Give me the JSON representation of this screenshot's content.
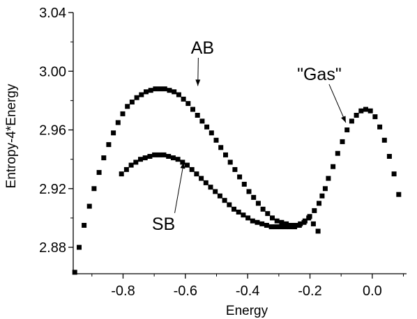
{
  "chart_data": {
    "type": "scatter",
    "xlabel": "Energy",
    "ylabel": "Entropy-4*Energy",
    "xlim": [
      -0.96,
      0.11
    ],
    "ylim": [
      2.862,
      3.04
    ],
    "x_ticks": [
      "-0.8",
      "-0.6",
      "-0.4",
      "-0.2",
      "0.0"
    ],
    "y_ticks": [
      "2.88",
      "2.92",
      "2.96",
      "3.00",
      "3.04"
    ],
    "grid": false,
    "marker": "square",
    "marker_color": "#000000",
    "annotations": [
      {
        "text": "AB",
        "x": -0.545,
        "y": 3.012,
        "points_to": [
          -0.56,
          2.99
        ]
      },
      {
        "text": "\"Gas\"",
        "x": -0.17,
        "y": 2.994,
        "points_to": [
          -0.085,
          2.965
        ]
      },
      {
        "text": "SB",
        "x": -0.67,
        "y": 2.892,
        "points_to": [
          -0.605,
          2.938
        ]
      }
    ],
    "series": [
      {
        "x": [
          -0.955,
          -0.941,
          -0.925,
          -0.908,
          -0.893,
          -0.877,
          -0.862,
          -0.846,
          -0.831,
          -0.816,
          -0.801,
          -0.786,
          -0.771,
          -0.756,
          -0.741,
          -0.726,
          -0.711,
          -0.696,
          -0.681,
          -0.666,
          -0.651,
          -0.636,
          -0.621,
          -0.606,
          -0.591,
          -0.576,
          -0.561,
          -0.546,
          -0.531,
          -0.516,
          -0.501,
          -0.486,
          -0.471,
          -0.456,
          -0.441,
          -0.426,
          -0.411,
          -0.396,
          -0.381,
          -0.366,
          -0.351,
          -0.336,
          -0.321,
          -0.306,
          -0.291,
          -0.276,
          -0.261,
          -0.246,
          -0.231,
          -0.216,
          -0.201,
          -0.186,
          -0.171,
          -0.161,
          -0.151,
          -0.141,
          -0.126,
          -0.111,
          -0.096,
          -0.081,
          -0.066,
          -0.051,
          -0.036,
          -0.021,
          -0.006,
          0.009,
          0.024,
          0.039,
          0.055,
          0.07,
          0.085
        ],
        "y": [
          2.863,
          2.88,
          2.895,
          2.908,
          2.92,
          2.931,
          2.941,
          2.95,
          2.958,
          2.965,
          2.971,
          2.976,
          2.979,
          2.982,
          2.984,
          2.986,
          2.987,
          2.988,
          2.988,
          2.988,
          2.987,
          2.986,
          2.984,
          2.981,
          2.978,
          2.974,
          2.97,
          2.966,
          2.962,
          2.958,
          2.953,
          2.948,
          2.943,
          2.938,
          2.933,
          2.928,
          2.923,
          2.918,
          2.914,
          2.91,
          2.906,
          2.903,
          2.9,
          2.898,
          2.897,
          2.896,
          2.895,
          2.895,
          2.896,
          2.898,
          2.901,
          2.905,
          2.91,
          2.915,
          2.92,
          2.927,
          2.935,
          2.944,
          2.952,
          2.96,
          2.966,
          2.97,
          2.973,
          2.974,
          2.973,
          2.969,
          2.962,
          2.953,
          2.942,
          2.93,
          2.916
        ]
      },
      {
        "x": [
          -0.805,
          -0.789,
          -0.774,
          -0.759,
          -0.744,
          -0.729,
          -0.714,
          -0.699,
          -0.684,
          -0.669,
          -0.654,
          -0.639,
          -0.624,
          -0.609,
          -0.594,
          -0.579,
          -0.564,
          -0.549,
          -0.534,
          -0.519,
          -0.504,
          -0.489,
          -0.474,
          -0.459,
          -0.444,
          -0.429,
          -0.414,
          -0.399,
          -0.384,
          -0.369,
          -0.354,
          -0.339,
          -0.324,
          -0.309,
          -0.294,
          -0.279,
          -0.264,
          -0.249,
          -0.234,
          -0.219,
          -0.204,
          -0.189,
          -0.174
        ],
        "y": [
          2.93,
          2.933,
          2.936,
          2.938,
          2.94,
          2.941,
          2.942,
          2.943,
          2.943,
          2.943,
          2.942,
          2.941,
          2.94,
          2.938,
          2.936,
          2.933,
          2.93,
          2.927,
          2.924,
          2.921,
          2.918,
          2.915,
          2.912,
          2.909,
          2.906,
          2.904,
          2.902,
          2.9,
          2.898,
          2.897,
          2.896,
          2.895,
          2.894,
          2.894,
          2.894,
          2.894,
          2.894,
          2.894,
          2.895,
          2.897,
          2.9,
          2.896,
          2.891
        ]
      }
    ]
  }
}
